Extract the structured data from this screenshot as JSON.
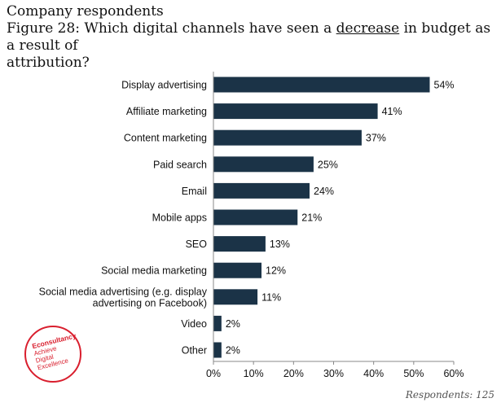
{
  "header": {
    "line1": "Company respondents",
    "question_pre": "Figure 28: Which digital channels have seen a ",
    "question_em": "decrease",
    "question_post": " in budget as a result of",
    "question_line3": "attribution?"
  },
  "footer": {
    "respondents": "Respondents: 125"
  },
  "logo": {
    "brand": "Econsultancy",
    "tagline": [
      "Achieve",
      "Digital",
      "Excellence"
    ],
    "color": "#d91f2e"
  },
  "chart_data": {
    "type": "bar",
    "orientation": "horizontal",
    "categories": [
      [
        "Display advertising"
      ],
      [
        "Affiliate marketing"
      ],
      [
        "Content marketing"
      ],
      [
        "Paid search"
      ],
      [
        "Email"
      ],
      [
        "Mobile apps"
      ],
      [
        "SEO"
      ],
      [
        "Social media marketing"
      ],
      [
        "Social media advertising (e.g. display",
        "advertising on Facebook)"
      ],
      [
        "Video"
      ],
      [
        "Other"
      ]
    ],
    "values": [
      54,
      41,
      37,
      25,
      24,
      21,
      13,
      12,
      11,
      2,
      2
    ],
    "value_labels": [
      "54%",
      "41%",
      "37%",
      "25%",
      "24%",
      "21%",
      "13%",
      "12%",
      "11%",
      "2%",
      "2%"
    ],
    "xlim": [
      0,
      60
    ],
    "xticks": [
      0,
      10,
      20,
      30,
      40,
      50,
      60
    ],
    "xtick_labels": [
      "0%",
      "10%",
      "20%",
      "30%",
      "40%",
      "50%",
      "60%"
    ],
    "bar_color": "#1b3347",
    "grid": false,
    "legend": "none"
  }
}
